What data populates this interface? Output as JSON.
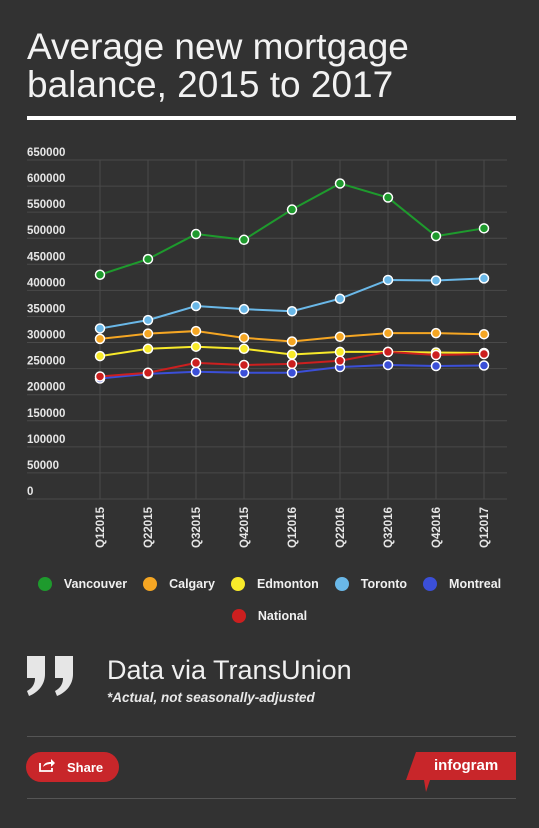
{
  "title": "Average new mortgage balance, 2015 to 2017",
  "chart_data": {
    "type": "line",
    "categories": [
      "Q12015",
      "Q22015",
      "Q32015",
      "Q42015",
      "Q12016",
      "Q22016",
      "Q32016",
      "Q42016",
      "Q12017"
    ],
    "ylim": [
      0,
      650000
    ],
    "yticks": [
      "650000",
      "600000",
      "550000",
      "500000",
      "450000",
      "400000",
      "350000",
      "300000",
      "250000",
      "200000",
      "150000",
      "100000",
      "50000",
      "0"
    ],
    "grid": true,
    "legend_position": "bottom",
    "series": [
      {
        "name": "Vancouver",
        "color": "#1e9a2d",
        "values": [
          430000,
          460000,
          508000,
          497000,
          555000,
          605000,
          578000,
          504000,
          519000
        ]
      },
      {
        "name": "Calgary",
        "color": "#f5a623",
        "values": [
          307000,
          317000,
          322000,
          309000,
          302000,
          311000,
          318000,
          318000,
          316000
        ]
      },
      {
        "name": "Edmonton",
        "color": "#f8ea2a",
        "values": [
          274000,
          288000,
          292000,
          288000,
          277000,
          282000,
          282000,
          281000,
          280000
        ]
      },
      {
        "name": "Toronto",
        "color": "#6ab8e8",
        "values": [
          327000,
          343000,
          370000,
          364000,
          360000,
          384000,
          420000,
          419000,
          423000
        ]
      },
      {
        "name": "Montreal",
        "color": "#3b4fd8",
        "values": [
          231000,
          240000,
          244000,
          242000,
          242000,
          253000,
          257000,
          255000,
          256000
        ]
      },
      {
        "name": "National",
        "color": "#cc1f1f",
        "values": [
          235000,
          242000,
          261000,
          257000,
          259000,
          265000,
          282000,
          276000,
          278000
        ]
      }
    ]
  },
  "source": {
    "title": "Data via TransUnion",
    "note": "*Actual, not seasonally-adjusted"
  },
  "footer": {
    "share_label": "Share",
    "brand_label": "infogram",
    "accent_color": "#c8262a"
  },
  "icons": {
    "quote": "quote-icon",
    "share": "share-icon"
  }
}
